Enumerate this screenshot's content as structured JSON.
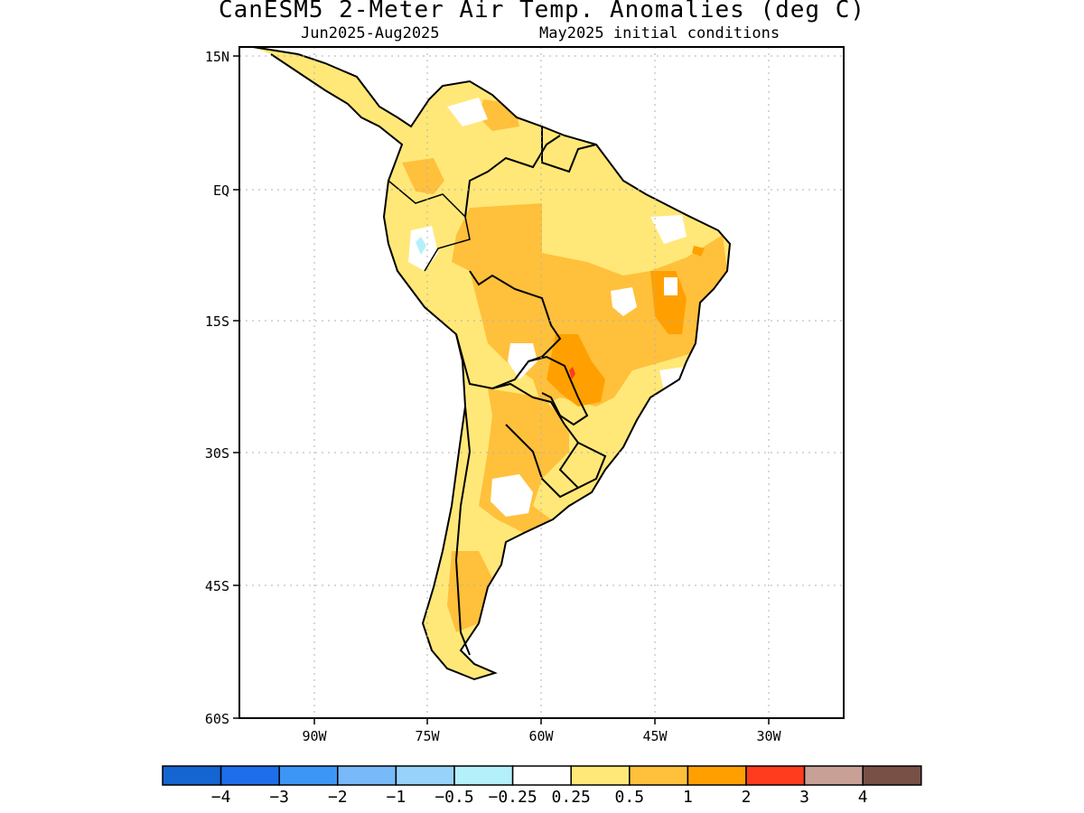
{
  "title": "CanESM5 2-Meter Air Temp. Anomalies (deg C)",
  "subtitle_left": "Jun2025-Aug2025",
  "subtitle_right": "May2025 initial conditions",
  "lat_ticks": [
    "15N",
    "EQ",
    "15S",
    "30S",
    "45S",
    "60S"
  ],
  "lon_ticks": [
    "90W",
    "75W",
    "60W",
    "45W",
    "30W"
  ],
  "colorbar": {
    "colors": [
      "#1464d2",
      "#1e6eeb",
      "#3c96f5",
      "#78b9fa",
      "#96d2fa",
      "#b4f0fa",
      "#ffffff",
      "#ffe878",
      "#ffc03c",
      "#ffa000",
      "#ff3c1e",
      "#c8a096",
      "#785046"
    ],
    "labels": [
      "-4",
      "-3",
      "-2",
      "-1",
      "-0.5",
      "-0.25",
      "0.25",
      "0.5",
      "1",
      "2",
      "3",
      "4"
    ]
  }
}
